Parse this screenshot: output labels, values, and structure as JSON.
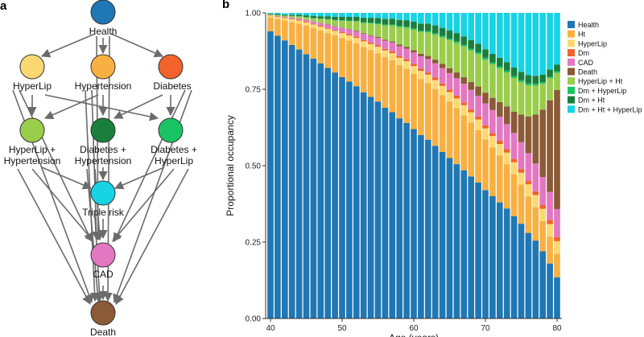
{
  "panel_a": {
    "label": "a",
    "nodes": {
      "health": {
        "label": "Health",
        "color": "#1F77B4"
      },
      "hyperlip": {
        "label": "HyperLip",
        "color": "#FCD872"
      },
      "hypertension": {
        "label": "Hypertension",
        "color": "#F9B042"
      },
      "diabetes": {
        "label": "Diabetes",
        "color": "#F2622A"
      },
      "hyperlip_ht": {
        "label1": "HyperLip +",
        "label2": "Hypertension",
        "color": "#9ACD4C"
      },
      "dm_ht": {
        "label1": "Diabetes +",
        "label2": "Hypertension",
        "color": "#1A7F3C"
      },
      "dm_hyperlip": {
        "label1": "Diabetes +",
        "label2": "HyperLip",
        "color": "#19C363"
      },
      "triple": {
        "label": "Triple risk",
        "color": "#17D3E3"
      },
      "cad": {
        "label": "CAD",
        "color": "#E377C2"
      },
      "death": {
        "label": "Death",
        "color": "#8B5A36"
      }
    }
  },
  "panel_b": {
    "label": "b"
  },
  "chart_data": {
    "type": "bar",
    "stacked": true,
    "xlabel": "Age (years)",
    "ylabel": "Proportional occupancy",
    "xlim": [
      40,
      80
    ],
    "ylim": [
      0,
      1
    ],
    "x_ticks": [
      40,
      50,
      60,
      70,
      80
    ],
    "y_ticks": [
      0.0,
      0.25,
      0.5,
      0.75,
      1.0
    ],
    "y_tick_labels": [
      "0.00",
      "0.25",
      "0.50",
      "0.75",
      "1.00"
    ],
    "x": [
      40,
      41,
      42,
      43,
      44,
      45,
      46,
      47,
      48,
      49,
      50,
      51,
      52,
      53,
      54,
      55,
      56,
      57,
      58,
      59,
      60,
      61,
      62,
      63,
      64,
      65,
      66,
      67,
      68,
      69,
      70,
      71,
      72,
      73,
      74,
      75,
      76,
      77,
      78,
      79,
      80
    ],
    "series": [
      {
        "name": "Health",
        "color": "#1F77B4",
        "values": [
          0.94,
          0.925,
          0.91,
          0.895,
          0.88,
          0.865,
          0.85,
          0.835,
          0.82,
          0.805,
          0.79,
          0.775,
          0.76,
          0.74,
          0.725,
          0.71,
          0.69,
          0.675,
          0.655,
          0.64,
          0.62,
          0.6,
          0.585,
          0.565,
          0.545,
          0.525,
          0.505,
          0.485,
          0.465,
          0.445,
          0.42,
          0.4,
          0.38,
          0.36,
          0.335,
          0.31,
          0.28,
          0.255,
          0.22,
          0.18,
          0.135
        ]
      },
      {
        "name": "Ht",
        "color": "#F9B042",
        "values": [
          0.045,
          0.055,
          0.065,
          0.075,
          0.085,
          0.093,
          0.1,
          0.107,
          0.114,
          0.121,
          0.128,
          0.134,
          0.14,
          0.148,
          0.153,
          0.158,
          0.165,
          0.17,
          0.174,
          0.177,
          0.18,
          0.183,
          0.185,
          0.186,
          0.186,
          0.185,
          0.183,
          0.18,
          0.176,
          0.171,
          0.166,
          0.16,
          0.153,
          0.145,
          0.137,
          0.128,
          0.119,
          0.109,
          0.099,
          0.088,
          0.077
        ]
      },
      {
        "name": "HyperLip",
        "color": "#FCD872",
        "values": [
          0.006,
          0.007,
          0.008,
          0.009,
          0.01,
          0.011,
          0.012,
          0.013,
          0.014,
          0.015,
          0.016,
          0.017,
          0.018,
          0.019,
          0.02,
          0.021,
          0.022,
          0.023,
          0.024,
          0.025,
          0.026,
          0.027,
          0.028,
          0.029,
          0.03,
          0.031,
          0.032,
          0.033,
          0.034,
          0.035,
          0.036,
          0.037,
          0.038,
          0.038,
          0.039,
          0.039,
          0.04,
          0.04,
          0.04,
          0.041,
          0.041
        ]
      },
      {
        "name": "Dm",
        "color": "#F2622A",
        "values": [
          0.001,
          0.001,
          0.001,
          0.002,
          0.002,
          0.002,
          0.002,
          0.003,
          0.003,
          0.003,
          0.003,
          0.004,
          0.004,
          0.004,
          0.005,
          0.005,
          0.005,
          0.006,
          0.006,
          0.006,
          0.007,
          0.007,
          0.007,
          0.008,
          0.008,
          0.008,
          0.009,
          0.009,
          0.009,
          0.01,
          0.01,
          0.01,
          0.011,
          0.011,
          0.011,
          0.012,
          0.012,
          0.012,
          0.012,
          0.013,
          0.013
        ]
      },
      {
        "name": "CAD",
        "color": "#E377C2",
        "values": [
          0.001,
          0.002,
          0.003,
          0.004,
          0.005,
          0.006,
          0.008,
          0.009,
          0.011,
          0.012,
          0.014,
          0.016,
          0.018,
          0.02,
          0.022,
          0.024,
          0.027,
          0.029,
          0.032,
          0.035,
          0.038,
          0.041,
          0.044,
          0.047,
          0.05,
          0.054,
          0.057,
          0.061,
          0.064,
          0.068,
          0.072,
          0.075,
          0.078,
          0.082,
          0.085,
          0.088,
          0.09,
          0.091,
          0.092,
          0.092,
          0.092
        ]
      },
      {
        "name": "Death",
        "color": "#8B5A36",
        "values": [
          0.0,
          0.0,
          0.0,
          0.0,
          0.0,
          0.0,
          0.0,
          0.0,
          0.001,
          0.001,
          0.001,
          0.001,
          0.002,
          0.002,
          0.002,
          0.003,
          0.003,
          0.004,
          0.005,
          0.006,
          0.007,
          0.008,
          0.01,
          0.012,
          0.014,
          0.016,
          0.019,
          0.022,
          0.026,
          0.03,
          0.035,
          0.04,
          0.048,
          0.058,
          0.07,
          0.09,
          0.12,
          0.16,
          0.22,
          0.3,
          0.39
        ]
      },
      {
        "name": "HyperLip + Ht",
        "color": "#9ACD4C",
        "values": [
          0.002,
          0.003,
          0.004,
          0.005,
          0.006,
          0.008,
          0.01,
          0.013,
          0.016,
          0.019,
          0.022,
          0.026,
          0.03,
          0.034,
          0.038,
          0.042,
          0.047,
          0.052,
          0.057,
          0.062,
          0.067,
          0.072,
          0.077,
          0.082,
          0.087,
          0.092,
          0.096,
          0.1,
          0.103,
          0.106,
          0.108,
          0.11,
          0.111,
          0.111,
          0.11,
          0.107,
          0.102,
          0.095,
          0.085,
          0.072,
          0.056
        ]
      },
      {
        "name": "Dm + HyperLip",
        "color": "#19C363",
        "values": [
          0.0,
          0.0,
          0.0,
          0.0,
          0.001,
          0.001,
          0.001,
          0.001,
          0.001,
          0.001,
          0.002,
          0.002,
          0.002,
          0.002,
          0.003,
          0.003,
          0.003,
          0.003,
          0.004,
          0.004,
          0.004,
          0.004,
          0.005,
          0.005,
          0.005,
          0.005,
          0.006,
          0.006,
          0.006,
          0.006,
          0.006,
          0.006,
          0.006,
          0.006,
          0.006,
          0.006,
          0.006,
          0.006,
          0.005,
          0.005,
          0.005
        ]
      },
      {
        "name": "Dm + Ht",
        "color": "#1A7F3C",
        "values": [
          0.002,
          0.003,
          0.003,
          0.004,
          0.005,
          0.006,
          0.007,
          0.008,
          0.009,
          0.01,
          0.011,
          0.012,
          0.013,
          0.015,
          0.016,
          0.017,
          0.018,
          0.019,
          0.02,
          0.021,
          0.022,
          0.023,
          0.024,
          0.025,
          0.026,
          0.026,
          0.027,
          0.027,
          0.028,
          0.028,
          0.028,
          0.028,
          0.028,
          0.028,
          0.028,
          0.027,
          0.027,
          0.026,
          0.025,
          0.024,
          0.022
        ]
      },
      {
        "name": "Dm + Ht + HyperLip",
        "color": "#17D3E3",
        "values": [
          0.003,
          0.004,
          0.005,
          0.006,
          0.006,
          0.008,
          0.01,
          0.011,
          0.011,
          0.013,
          0.013,
          0.013,
          0.013,
          0.016,
          0.016,
          0.017,
          0.02,
          0.019,
          0.023,
          0.024,
          0.029,
          0.035,
          0.035,
          0.041,
          0.049,
          0.058,
          0.066,
          0.077,
          0.089,
          0.101,
          0.119,
          0.134,
          0.147,
          0.161,
          0.179,
          0.193,
          0.204,
          0.206,
          0.217,
          0.225,
          0.239
        ]
      }
    ]
  }
}
